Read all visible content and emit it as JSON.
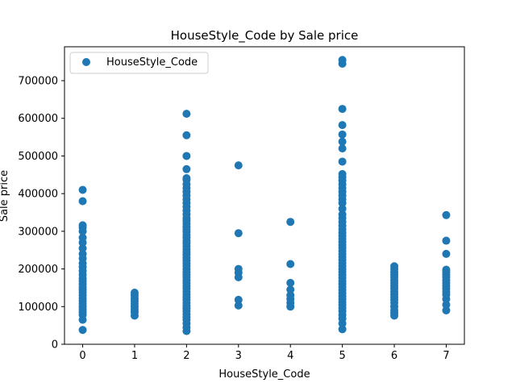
{
  "chart_data": {
    "type": "scatter",
    "title": "HouseStyle_Code by Sale price",
    "xlabel": "HouseStyle_Code",
    "ylabel": "Sale price",
    "xlim": [
      -0.35,
      7.35
    ],
    "ylim": [
      0,
      790000
    ],
    "xticks": [
      0,
      1,
      2,
      3,
      4,
      5,
      6,
      7
    ],
    "yticks": [
      0,
      100000,
      200000,
      300000,
      400000,
      500000,
      600000,
      700000
    ],
    "grid": false,
    "legend": {
      "position": "top-left",
      "entries": [
        "HouseStyle_Code"
      ]
    },
    "series": [
      {
        "name": "HouseStyle_Code",
        "color": "#1f77b4",
        "points": [
          [
            0,
            38000
          ],
          [
            0,
            65000
          ],
          [
            0,
            78000
          ],
          [
            0,
            85000
          ],
          [
            0,
            92000
          ],
          [
            0,
            100000
          ],
          [
            0,
            108000
          ],
          [
            0,
            115000
          ],
          [
            0,
            122000
          ],
          [
            0,
            130000
          ],
          [
            0,
            138000
          ],
          [
            0,
            145000
          ],
          [
            0,
            152000
          ],
          [
            0,
            160000
          ],
          [
            0,
            168000
          ],
          [
            0,
            175000
          ],
          [
            0,
            185000
          ],
          [
            0,
            195000
          ],
          [
            0,
            205000
          ],
          [
            0,
            215000
          ],
          [
            0,
            228000
          ],
          [
            0,
            240000
          ],
          [
            0,
            255000
          ],
          [
            0,
            270000
          ],
          [
            0,
            283000
          ],
          [
            0,
            300000
          ],
          [
            0,
            310000
          ],
          [
            0,
            316000
          ],
          [
            0,
            380000
          ],
          [
            0,
            410000
          ],
          [
            1,
            76000
          ],
          [
            1,
            85000
          ],
          [
            1,
            92000
          ],
          [
            1,
            100000
          ],
          [
            1,
            108000
          ],
          [
            1,
            115000
          ],
          [
            1,
            122000
          ],
          [
            1,
            130000
          ],
          [
            1,
            137000
          ],
          [
            2,
            35000
          ],
          [
            2,
            45000
          ],
          [
            2,
            55000
          ],
          [
            2,
            65000
          ],
          [
            2,
            72000
          ],
          [
            2,
            80000
          ],
          [
            2,
            88000
          ],
          [
            2,
            95000
          ],
          [
            2,
            102000
          ],
          [
            2,
            110000
          ],
          [
            2,
            118000
          ],
          [
            2,
            125000
          ],
          [
            2,
            132000
          ],
          [
            2,
            140000
          ],
          [
            2,
            148000
          ],
          [
            2,
            155000
          ],
          [
            2,
            162000
          ],
          [
            2,
            170000
          ],
          [
            2,
            178000
          ],
          [
            2,
            185000
          ],
          [
            2,
            192000
          ],
          [
            2,
            200000
          ],
          [
            2,
            208000
          ],
          [
            2,
            215000
          ],
          [
            2,
            222000
          ],
          [
            2,
            230000
          ],
          [
            2,
            238000
          ],
          [
            2,
            245000
          ],
          [
            2,
            252000
          ],
          [
            2,
            260000
          ],
          [
            2,
            268000
          ],
          [
            2,
            275000
          ],
          [
            2,
            283000
          ],
          [
            2,
            290000
          ],
          [
            2,
            298000
          ],
          [
            2,
            305000
          ],
          [
            2,
            312000
          ],
          [
            2,
            320000
          ],
          [
            2,
            328000
          ],
          [
            2,
            335000
          ],
          [
            2,
            345000
          ],
          [
            2,
            355000
          ],
          [
            2,
            365000
          ],
          [
            2,
            375000
          ],
          [
            2,
            385000
          ],
          [
            2,
            395000
          ],
          [
            2,
            405000
          ],
          [
            2,
            415000
          ],
          [
            2,
            425000
          ],
          [
            2,
            437000
          ],
          [
            2,
            441000
          ],
          [
            2,
            465000
          ],
          [
            2,
            500000
          ],
          [
            2,
            555000
          ],
          [
            2,
            612000
          ],
          [
            3,
            103000
          ],
          [
            3,
            118000
          ],
          [
            3,
            178000
          ],
          [
            3,
            190000
          ],
          [
            3,
            200000
          ],
          [
            3,
            295000
          ],
          [
            3,
            475000
          ],
          [
            4,
            100000
          ],
          [
            4,
            110000
          ],
          [
            4,
            120000
          ],
          [
            4,
            130000
          ],
          [
            4,
            145000
          ],
          [
            4,
            163000
          ],
          [
            4,
            213000
          ],
          [
            4,
            325000
          ],
          [
            5,
            40000
          ],
          [
            5,
            55000
          ],
          [
            5,
            68000
          ],
          [
            5,
            78000
          ],
          [
            5,
            88000
          ],
          [
            5,
            96000
          ],
          [
            5,
            104000
          ],
          [
            5,
            112000
          ],
          [
            5,
            120000
          ],
          [
            5,
            128000
          ],
          [
            5,
            136000
          ],
          [
            5,
            144000
          ],
          [
            5,
            152000
          ],
          [
            5,
            160000
          ],
          [
            5,
            168000
          ],
          [
            5,
            176000
          ],
          [
            5,
            184000
          ],
          [
            5,
            192000
          ],
          [
            5,
            200000
          ],
          [
            5,
            208000
          ],
          [
            5,
            216000
          ],
          [
            5,
            224000
          ],
          [
            5,
            232000
          ],
          [
            5,
            240000
          ],
          [
            5,
            248000
          ],
          [
            5,
            256000
          ],
          [
            5,
            264000
          ],
          [
            5,
            272000
          ],
          [
            5,
            280000
          ],
          [
            5,
            288000
          ],
          [
            5,
            296000
          ],
          [
            5,
            305000
          ],
          [
            5,
            315000
          ],
          [
            5,
            325000
          ],
          [
            5,
            335000
          ],
          [
            5,
            345000
          ],
          [
            5,
            360000
          ],
          [
            5,
            375000
          ],
          [
            5,
            385000
          ],
          [
            5,
            395000
          ],
          [
            5,
            405000
          ],
          [
            5,
            415000
          ],
          [
            5,
            425000
          ],
          [
            5,
            435000
          ],
          [
            5,
            444000
          ],
          [
            5,
            452000
          ],
          [
            5,
            485000
          ],
          [
            5,
            520000
          ],
          [
            5,
            538000
          ],
          [
            5,
            557000
          ],
          [
            5,
            582000
          ],
          [
            5,
            625000
          ],
          [
            5,
            745000
          ],
          [
            5,
            755000
          ],
          [
            6,
            76000
          ],
          [
            6,
            83000
          ],
          [
            6,
            90000
          ],
          [
            6,
            100000
          ],
          [
            6,
            110000
          ],
          [
            6,
            118000
          ],
          [
            6,
            125000
          ],
          [
            6,
            132000
          ],
          [
            6,
            140000
          ],
          [
            6,
            148000
          ],
          [
            6,
            155000
          ],
          [
            6,
            162000
          ],
          [
            6,
            170000
          ],
          [
            6,
            178000
          ],
          [
            6,
            185000
          ],
          [
            6,
            192000
          ],
          [
            6,
            200000
          ],
          [
            6,
            207000
          ],
          [
            7,
            90000
          ],
          [
            7,
            105000
          ],
          [
            7,
            120000
          ],
          [
            7,
            132000
          ],
          [
            7,
            140000
          ],
          [
            7,
            148000
          ],
          [
            7,
            155000
          ],
          [
            7,
            162000
          ],
          [
            7,
            170000
          ],
          [
            7,
            178000
          ],
          [
            7,
            185000
          ],
          [
            7,
            192000
          ],
          [
            7,
            198000
          ],
          [
            7,
            240000
          ],
          [
            7,
            275000
          ],
          [
            7,
            343000
          ]
        ]
      }
    ]
  }
}
